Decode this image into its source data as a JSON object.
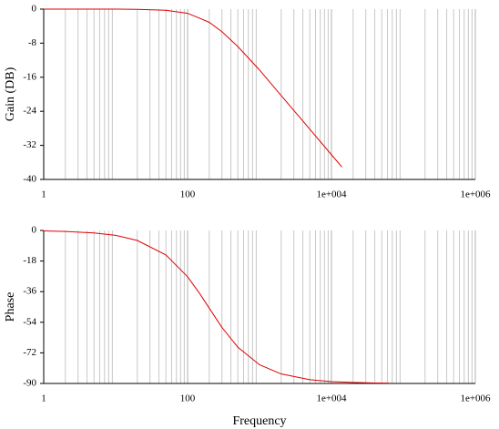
{
  "chart_data": [
    {
      "type": "line",
      "ylabel": "Gain (DB)",
      "xscale": "log",
      "xgrid": true,
      "minor_grid": true,
      "xlim": [
        1,
        1000000
      ],
      "ylim": [
        -40,
        0
      ],
      "xticks": [
        1,
        100,
        {
          "value": 10000,
          "label": "1e+004"
        },
        {
          "value": 1000000,
          "label": "1e+006"
        }
      ],
      "yticks": [
        -40,
        -32,
        -24,
        -16,
        -8,
        0
      ],
      "series": [
        {
          "color": "#e00000",
          "x": [
            1,
            2,
            5,
            10,
            20,
            50,
            100,
            150,
            200,
            300,
            500,
            1000,
            2000,
            5000,
            10000,
            14000
          ],
          "values": [
            0,
            0,
            0,
            -0.01,
            -0.05,
            -0.28,
            -0.98,
            -2.2,
            -3.1,
            -5.3,
            -8.8,
            -14.3,
            -20.3,
            -28.2,
            -34.2,
            -37.1
          ]
        }
      ]
    },
    {
      "type": "line",
      "ylabel": "Phase",
      "xlabel": "Frequency",
      "xscale": "log",
      "xgrid": true,
      "minor_grid": true,
      "xlim": [
        1,
        1000000
      ],
      "ylim": [
        -90,
        0
      ],
      "xticks": [
        1,
        100,
        {
          "value": 10000,
          "label": "1e+004"
        },
        {
          "value": 1000000,
          "label": "1e+006"
        }
      ],
      "yticks": [
        -90,
        -72,
        -54,
        -36,
        -18,
        0
      ],
      "series": [
        {
          "color": "#e00000",
          "x": [
            1,
            2,
            5,
            10,
            20,
            50,
            100,
            150,
            200,
            300,
            500,
            1000,
            2000,
            5000,
            10000,
            20000,
            40000,
            63000
          ],
          "values": [
            -0.3,
            -0.6,
            -1.5,
            -2.9,
            -5.9,
            -14.4,
            -27.2,
            -37.6,
            -45.7,
            -57,
            -68.7,
            -79,
            -84.4,
            -87.8,
            -88.9,
            -89.4,
            -89.7,
            -89.8
          ]
        }
      ]
    }
  ]
}
